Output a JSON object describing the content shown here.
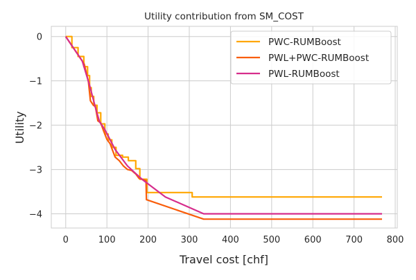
{
  "chart_data": {
    "type": "line",
    "title": "Utility contribution from SM_COST",
    "xlabel": "Travel cost [chf]",
    "ylabel": "Utility",
    "xlim": [
      -35,
      805
    ],
    "ylim": [
      -4.32,
      0.23
    ],
    "xticks": [
      0,
      100,
      200,
      300,
      400,
      500,
      600,
      700,
      800
    ],
    "xtick_labels": [
      "0",
      "100",
      "200",
      "300",
      "400",
      "500",
      "600",
      "700",
      "800"
    ],
    "yticks": [
      0,
      -1,
      -2,
      -3,
      -4
    ],
    "ytick_labels": [
      "0",
      "−1",
      "−2",
      "−3",
      "−4"
    ],
    "grid": true,
    "legend_position": "top-right",
    "series": [
      {
        "name": "PWC-RUMBoost",
        "color": "#ffa600",
        "step": true,
        "x": [
          0,
          15,
          30,
          44,
          53,
          58,
          62,
          68,
          76,
          85,
          95,
          103,
          112,
          122,
          138,
          152,
          170,
          180,
          197,
          210,
          230,
          260,
          307,
          400,
          500,
          600,
          700,
          768
        ],
        "y": [
          0,
          -0.25,
          -0.45,
          -0.68,
          -0.88,
          -1.15,
          -1.35,
          -1.55,
          -1.72,
          -1.97,
          -2.2,
          -2.33,
          -2.5,
          -2.68,
          -2.72,
          -2.8,
          -2.98,
          -3.22,
          -3.52,
          -3.52,
          -3.52,
          -3.52,
          -3.62,
          -3.62,
          -3.62,
          -3.62,
          -3.62,
          -3.62
        ]
      },
      {
        "name": "PWL+PWC-RUMBoost",
        "color": "#f95d0a",
        "step": false,
        "x": [
          0,
          45,
          55,
          60,
          67,
          72,
          78,
          85,
          92,
          100,
          108,
          113,
          120,
          130,
          140,
          150,
          160,
          170,
          178,
          186,
          195,
          196,
          335,
          768
        ],
        "y": [
          0,
          -0.62,
          -1.02,
          -1.45,
          -1.55,
          -1.58,
          -1.9,
          -1.95,
          -2.13,
          -2.32,
          -2.42,
          -2.55,
          -2.72,
          -2.8,
          -2.92,
          -3.0,
          -3.02,
          -3.1,
          -3.2,
          -3.22,
          -3.25,
          -3.68,
          -4.12,
          -4.12
        ]
      },
      {
        "name": "PWL-RUMBoost",
        "color": "#d62d8c",
        "step": false,
        "x": [
          0,
          40,
          58,
          72,
          82,
          95,
          120,
          150,
          185,
          242,
          335,
          768
        ],
        "y": [
          0,
          -0.55,
          -1.1,
          -1.6,
          -1.92,
          -2.1,
          -2.55,
          -2.92,
          -3.22,
          -3.62,
          -4.0,
          -4.0
        ]
      }
    ]
  }
}
